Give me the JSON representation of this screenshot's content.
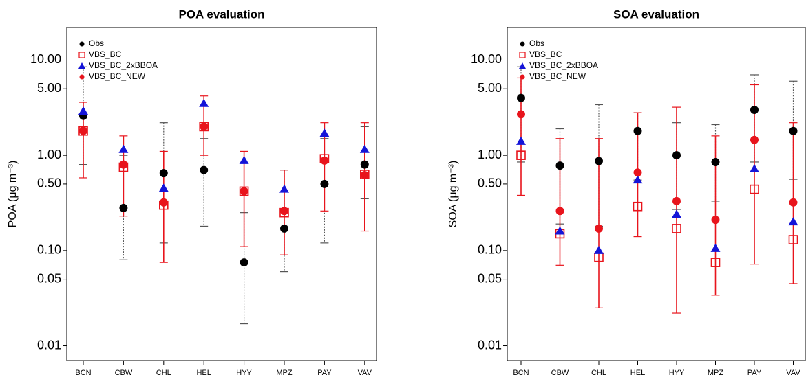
{
  "chart_data": [
    {
      "type": "errorbar",
      "title": "POA evaluation",
      "ylabel": "POA (μg m⁻³)",
      "log_y": true,
      "categories": [
        "BCN",
        "CBW",
        "CHL",
        "HEL",
        "HYY",
        "MPZ",
        "PAY",
        "VAV"
      ],
      "ylim": [
        0.007,
        22
      ],
      "yticks": [
        0.01,
        0.05,
        {
          "value": 0.1,
          "label": "0.10"
        },
        {
          "value": 0.5,
          "label": "0.50"
        },
        {
          "value": 1,
          "label": "1.00"
        },
        {
          "value": 5,
          "label": "5.00"
        },
        {
          "value": 10,
          "label": "10.00"
        }
      ],
      "series": [
        {
          "name": "Obs",
          "color": "#000000",
          "marker": "circle",
          "values": [
            2.6,
            0.28,
            0.65,
            0.7,
            0.075,
            0.17,
            0.5,
            0.8
          ],
          "lower": [
            0.8,
            0.08,
            0.12,
            0.18,
            0.017,
            0.06,
            0.12,
            0.35
          ],
          "upper": [
            8.5,
            1.0,
            2.2,
            1.5,
            0.25,
            0.7,
            1.5,
            2.0
          ]
        },
        {
          "name": "VBS_BC",
          "color": "#e8141c",
          "marker": "square",
          "values": [
            1.8,
            0.75,
            0.3,
            2.0,
            0.42,
            0.25,
            0.92,
            0.63
          ]
        },
        {
          "name": "VBS_BC_2xBBOA",
          "color": "#1414d8",
          "marker": "triangle",
          "values": [
            2.9,
            1.15,
            0.45,
            3.5,
            0.88,
            0.44,
            1.7,
            1.15
          ]
        },
        {
          "name": "VBS_BC_NEW",
          "color": "#e8141c",
          "marker": "dot",
          "values": [
            1.8,
            0.8,
            0.32,
            2.0,
            0.42,
            0.26,
            0.88,
            0.62
          ],
          "lower": [
            0.58,
            0.23,
            0.075,
            1.0,
            0.11,
            0.09,
            0.26,
            0.16
          ],
          "upper": [
            3.6,
            1.6,
            1.1,
            4.2,
            1.1,
            0.7,
            2.2,
            2.2
          ]
        }
      ]
    },
    {
      "type": "errorbar",
      "title": "SOA evaluation",
      "ylabel": "SOA (μg m⁻³)",
      "log_y": true,
      "categories": [
        "BCN",
        "CBW",
        "CHL",
        "HEL",
        "HYY",
        "MPZ",
        "PAY",
        "VAV"
      ],
      "ylim": [
        0.007,
        22
      ],
      "yticks": [
        0.01,
        0.05,
        {
          "value": 0.1,
          "label": "0.10"
        },
        {
          "value": 0.5,
          "label": "0.50"
        },
        {
          "value": 1,
          "label": "1.00"
        },
        {
          "value": 5,
          "label": "5.00"
        },
        {
          "value": 10,
          "label": "10.00"
        }
      ],
      "series": [
        {
          "name": "Obs",
          "color": "#000000",
          "marker": "circle",
          "values": [
            4.0,
            0.78,
            0.87,
            1.8,
            1.0,
            0.85,
            3.0,
            1.8
          ],
          "lower": [
            0.85,
            0.19,
            0.18,
            0.55,
            0.27,
            0.33,
            0.85,
            0.56
          ],
          "upper": [
            8.5,
            1.9,
            3.4,
            2.8,
            2.2,
            2.1,
            7.0,
            6.0
          ]
        },
        {
          "name": "VBS_BC",
          "color": "#e8141c",
          "marker": "square",
          "values": [
            1.0,
            0.15,
            0.085,
            0.29,
            0.17,
            0.075,
            0.44,
            0.13
          ]
        },
        {
          "name": "VBS_BC_2xBBOA",
          "color": "#1414d8",
          "marker": "triangle",
          "values": [
            1.4,
            0.16,
            0.1,
            0.55,
            0.24,
            0.105,
            0.72,
            0.2
          ]
        },
        {
          "name": "VBS_BC_NEW",
          "color": "#e8141c",
          "marker": "dot",
          "values": [
            2.7,
            0.26,
            0.17,
            0.66,
            0.33,
            0.21,
            1.45,
            0.32
          ],
          "lower": [
            0.38,
            0.07,
            0.025,
            0.14,
            0.022,
            0.034,
            0.072,
            0.045
          ],
          "upper": [
            6.5,
            1.5,
            1.5,
            2.8,
            3.2,
            1.6,
            5.5,
            2.2
          ]
        }
      ]
    }
  ]
}
